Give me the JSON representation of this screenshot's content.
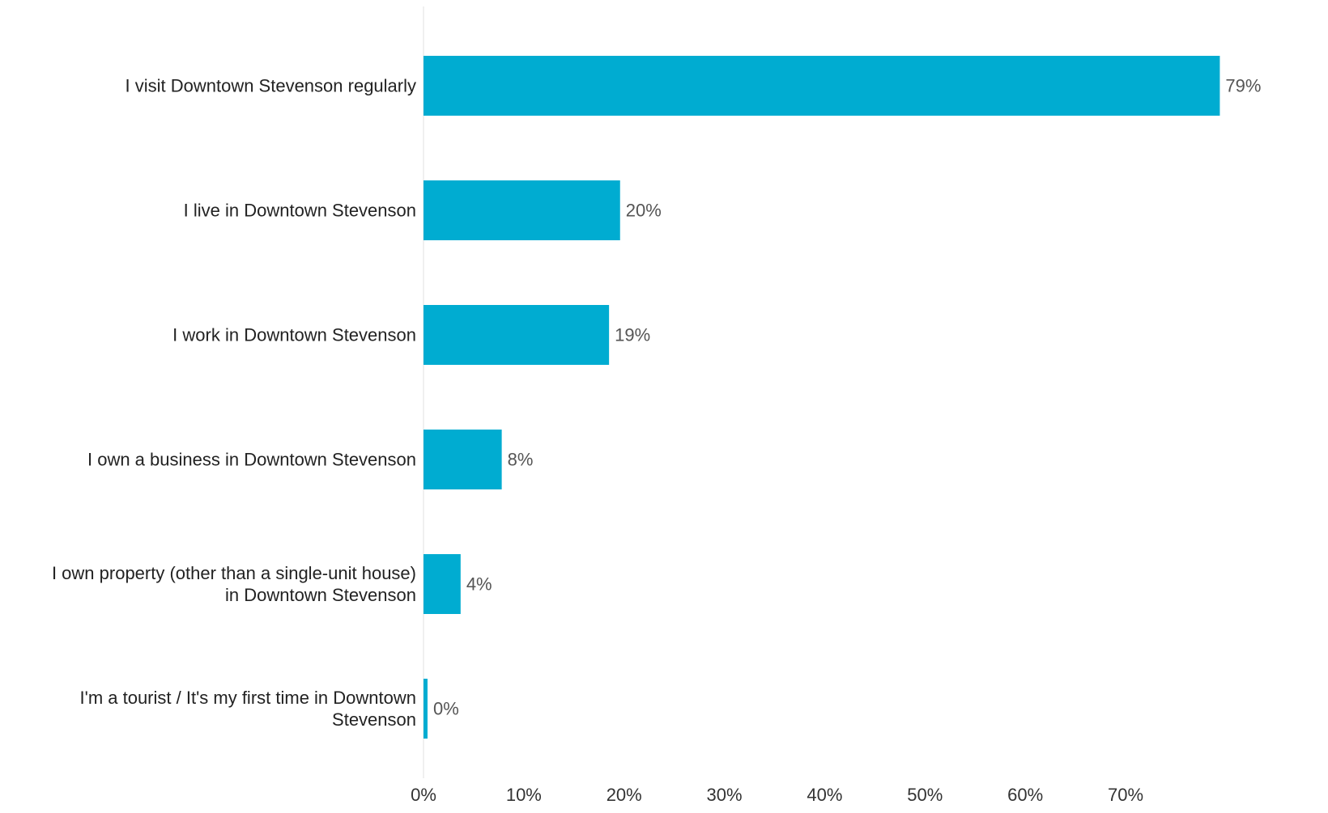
{
  "chart_data": {
    "type": "bar",
    "orientation": "horizontal",
    "categories": [
      "I visit Downtown Stevenson regularly",
      "I live in Downtown Stevenson",
      "I work in Downtown Stevenson",
      "I own a business in Downtown Stevenson",
      "I own property (other than a single-unit house) in Downtown Stevenson",
      "I'm a tourist / It's my first time in Downtown Stevenson"
    ],
    "category_lines": [
      [
        "I visit Downtown Stevenson regularly"
      ],
      [
        "I live in Downtown Stevenson"
      ],
      [
        "I work in Downtown Stevenson"
      ],
      [
        "I own a business in Downtown Stevenson"
      ],
      [
        "I own property (other than a single-unit house)",
        "in Downtown Stevenson"
      ],
      [
        "I'm a tourist / It's my first time in Downtown",
        "Stevenson"
      ]
    ],
    "values": [
      79.4,
      19.6,
      18.5,
      7.8,
      3.7,
      0.4
    ],
    "value_labels": [
      "79%",
      "20%",
      "19%",
      "8%",
      "4%",
      "0%"
    ],
    "x_ticks": [
      0,
      10,
      20,
      30,
      40,
      50,
      60,
      70
    ],
    "x_tick_labels": [
      "0%",
      "10%",
      "20%",
      "30%",
      "40%",
      "50%",
      "60%",
      "70%"
    ],
    "xlim": [
      0,
      80
    ],
    "title": "",
    "xlabel": "",
    "ylabel": "",
    "grid": false,
    "legend": "none",
    "colors": {
      "bar": "#00acd1",
      "axis_line": "#e0e0e0",
      "category_text": "#222222",
      "value_text": "#555555",
      "tick_text": "#333333"
    }
  }
}
